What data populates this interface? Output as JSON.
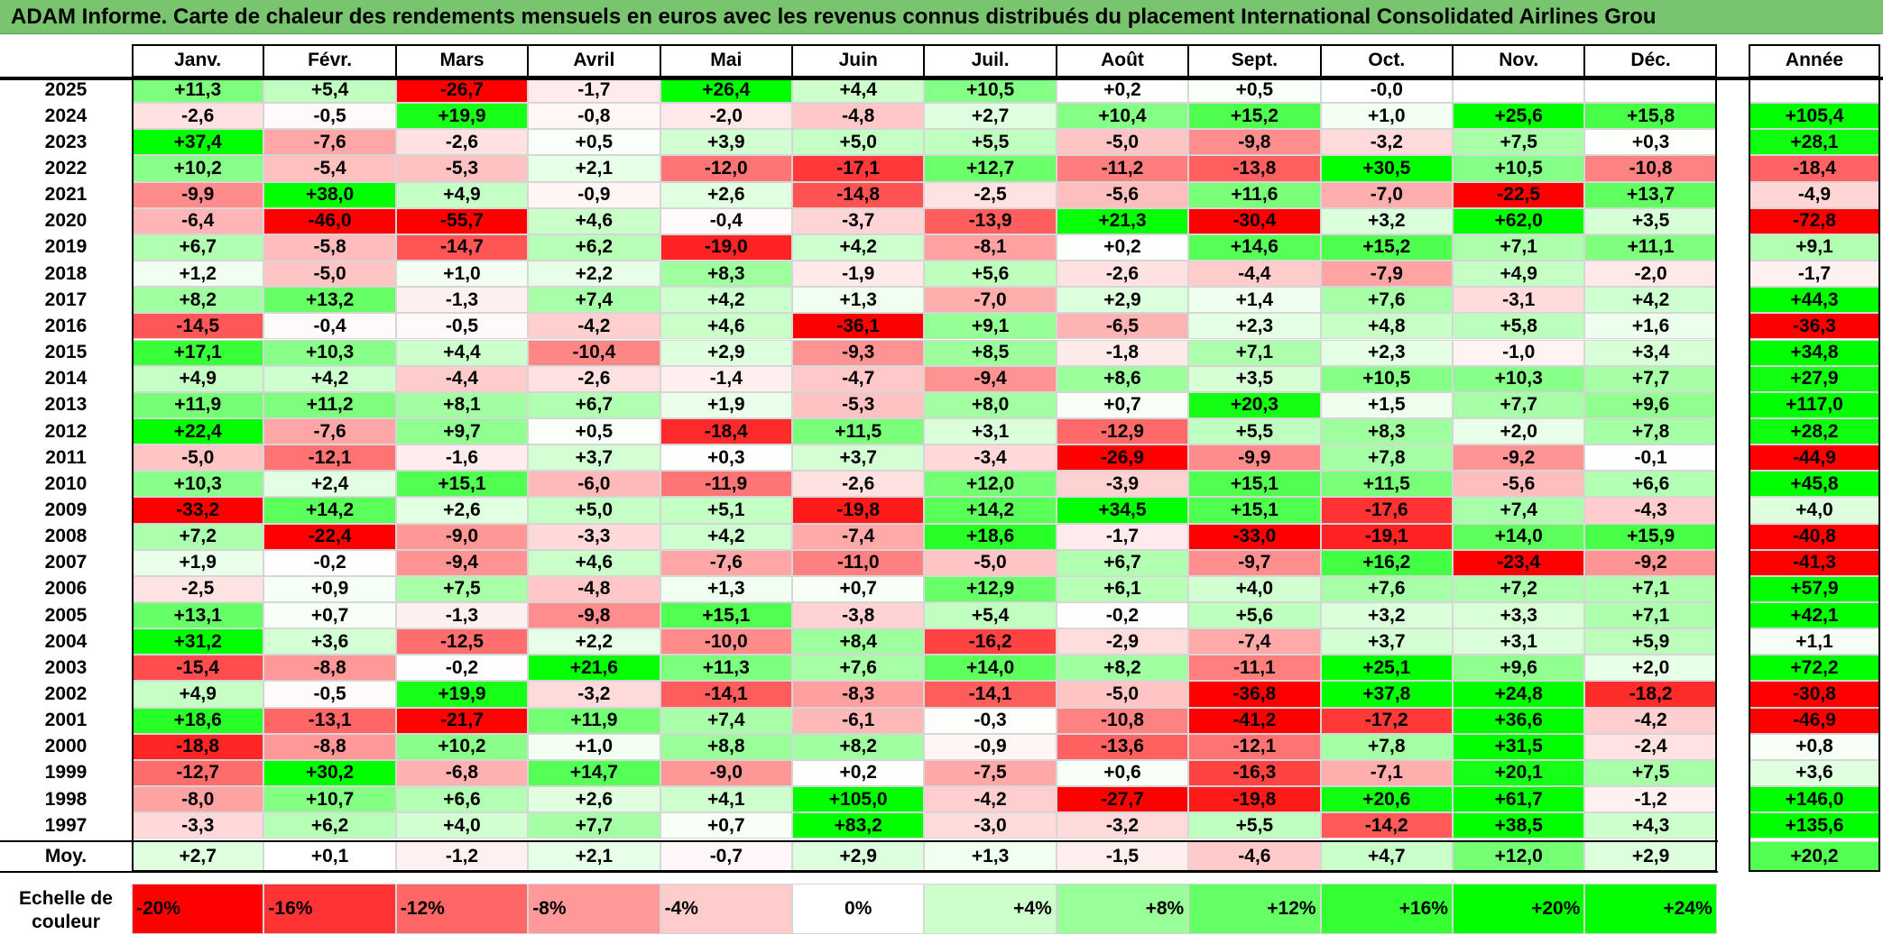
{
  "title": "ADAM Informe. Carte de chaleur des rendements mensuels en euros avec les revenus connus distribués du placement International Consolidated Airlines Grou",
  "chart_data": {
    "type": "heatmap",
    "columns": [
      "Janv.",
      "Févr.",
      "Mars",
      "Avril",
      "Mai",
      "Juin",
      "Juil.",
      "Août",
      "Sept.",
      "Oct.",
      "Nov.",
      "Déc."
    ],
    "year_header": "Année",
    "rows": [
      {
        "year": "2025",
        "months": [
          "+11,3",
          "+5,4",
          "-26,7",
          "-1,7",
          "+26,4",
          "+4,4",
          "+10,5",
          "+0,2",
          "+0,5",
          "-0,0",
          "",
          ""
        ],
        "total": ""
      },
      {
        "year": "2024",
        "months": [
          "-2,6",
          "-0,5",
          "+19,9",
          "-0,8",
          "-2,0",
          "-4,8",
          "+2,7",
          "+10,4",
          "+15,2",
          "+1,0",
          "+25,6",
          "+15,8"
        ],
        "total": "+105,4"
      },
      {
        "year": "2023",
        "months": [
          "+37,4",
          "-7,6",
          "-2,6",
          "+0,5",
          "+3,9",
          "+5,0",
          "+5,5",
          "-5,0",
          "-9,8",
          "-3,2",
          "+7,5",
          "+0,3"
        ],
        "total": "+28,1"
      },
      {
        "year": "2022",
        "months": [
          "+10,2",
          "-5,4",
          "-5,3",
          "+2,1",
          "-12,0",
          "-17,1",
          "+12,7",
          "-11,2",
          "-13,8",
          "+30,5",
          "+10,5",
          "-10,8"
        ],
        "total": "-18,4"
      },
      {
        "year": "2021",
        "months": [
          "-9,9",
          "+38,0",
          "+4,9",
          "-0,9",
          "+2,6",
          "-14,8",
          "-2,5",
          "-5,6",
          "+11,6",
          "-7,0",
          "-22,5",
          "+13,7"
        ],
        "total": "-4,9"
      },
      {
        "year": "2020",
        "months": [
          "-6,4",
          "-46,0",
          "-55,7",
          "+4,6",
          "-0,4",
          "-3,7",
          "-13,9",
          "+21,3",
          "-30,4",
          "+3,2",
          "+62,0",
          "+3,5"
        ],
        "total": "-72,8"
      },
      {
        "year": "2019",
        "months": [
          "+6,7",
          "-5,8",
          "-14,7",
          "+6,2",
          "-19,0",
          "+4,2",
          "-8,1",
          "+0,2",
          "+14,6",
          "+15,2",
          "+7,1",
          "+11,1"
        ],
        "total": "+9,1"
      },
      {
        "year": "2018",
        "months": [
          "+1,2",
          "-5,0",
          "+1,0",
          "+2,2",
          "+8,3",
          "-1,9",
          "+5,6",
          "-2,6",
          "-4,4",
          "-7,9",
          "+4,9",
          "-2,0"
        ],
        "total": "-1,7"
      },
      {
        "year": "2017",
        "months": [
          "+8,2",
          "+13,2",
          "-1,3",
          "+7,4",
          "+4,2",
          "+1,3",
          "-7,0",
          "+2,9",
          "+1,4",
          "+7,6",
          "-3,1",
          "+4,2"
        ],
        "total": "+44,3"
      },
      {
        "year": "2016",
        "months": [
          "-14,5",
          "-0,4",
          "-0,5",
          "-4,2",
          "+4,6",
          "-36,1",
          "+9,1",
          "-6,5",
          "+2,3",
          "+4,8",
          "+5,8",
          "+1,6"
        ],
        "total": "-36,3"
      },
      {
        "year": "2015",
        "months": [
          "+17,1",
          "+10,3",
          "+4,4",
          "-10,4",
          "+2,9",
          "-9,3",
          "+8,5",
          "-1,8",
          "+7,1",
          "+2,3",
          "-1,0",
          "+3,4"
        ],
        "total": "+34,8"
      },
      {
        "year": "2014",
        "months": [
          "+4,9",
          "+4,2",
          "-4,4",
          "-2,6",
          "-1,4",
          "-4,7",
          "-9,4",
          "+8,6",
          "+3,5",
          "+10,5",
          "+10,3",
          "+7,7"
        ],
        "total": "+27,9"
      },
      {
        "year": "2013",
        "months": [
          "+11,9",
          "+11,2",
          "+8,1",
          "+6,7",
          "+1,9",
          "-5,3",
          "+8,0",
          "+0,7",
          "+20,3",
          "+1,5",
          "+7,7",
          "+9,6"
        ],
        "total": "+117,0"
      },
      {
        "year": "2012",
        "months": [
          "+22,4",
          "-7,6",
          "+9,7",
          "+0,5",
          "-18,4",
          "+11,5",
          "+3,1",
          "-12,9",
          "+5,5",
          "+8,3",
          "+2,0",
          "+7,8"
        ],
        "total": "+28,2"
      },
      {
        "year": "2011",
        "months": [
          "-5,0",
          "-12,1",
          "-1,6",
          "+3,7",
          "+0,3",
          "+3,7",
          "-3,4",
          "-26,9",
          "-9,9",
          "+7,8",
          "-9,2",
          "-0,1"
        ],
        "total": "-44,9"
      },
      {
        "year": "2010",
        "months": [
          "+10,3",
          "+2,4",
          "+15,1",
          "-6,0",
          "-11,9",
          "-2,6",
          "+12,0",
          "-3,9",
          "+15,1",
          "+11,5",
          "-5,6",
          "+6,6"
        ],
        "total": "+45,8"
      },
      {
        "year": "2009",
        "months": [
          "-33,2",
          "+14,2",
          "+2,6",
          "+5,0",
          "+5,1",
          "-19,8",
          "+14,2",
          "+34,5",
          "+15,1",
          "-17,6",
          "+7,4",
          "-4,3"
        ],
        "total": "+4,0"
      },
      {
        "year": "2008",
        "months": [
          "+7,2",
          "-22,4",
          "-9,0",
          "-3,3",
          "+4,2",
          "-7,4",
          "+18,6",
          "-1,7",
          "-33,0",
          "-19,1",
          "+14,0",
          "+15,9"
        ],
        "total": "-40,8"
      },
      {
        "year": "2007",
        "months": [
          "+1,9",
          "-0,2",
          "-9,4",
          "+4,6",
          "-7,6",
          "-11,0",
          "-5,0",
          "+6,7",
          "-9,7",
          "+16,2",
          "-23,4",
          "-9,2"
        ],
        "total": "-41,3"
      },
      {
        "year": "2006",
        "months": [
          "-2,5",
          "+0,9",
          "+7,5",
          "-4,8",
          "+1,3",
          "+0,7",
          "+12,9",
          "+6,1",
          "+4,0",
          "+7,6",
          "+7,2",
          "+7,1"
        ],
        "total": "+57,9"
      },
      {
        "year": "2005",
        "months": [
          "+13,1",
          "+0,7",
          "-1,3",
          "-9,8",
          "+15,1",
          "-3,8",
          "+5,4",
          "-0,2",
          "+5,6",
          "+3,2",
          "+3,3",
          "+7,1"
        ],
        "total": "+42,1"
      },
      {
        "year": "2004",
        "months": [
          "+31,2",
          "+3,6",
          "-12,5",
          "+2,2",
          "-10,0",
          "+8,4",
          "-16,2",
          "-2,9",
          "-7,4",
          "+3,7",
          "+3,1",
          "+5,9"
        ],
        "total": "+1,1"
      },
      {
        "year": "2003",
        "months": [
          "-15,4",
          "-8,8",
          "-0,2",
          "+21,6",
          "+11,3",
          "+7,6",
          "+14,0",
          "+8,2",
          "-11,1",
          "+25,1",
          "+9,6",
          "+2,0"
        ],
        "total": "+72,2"
      },
      {
        "year": "2002",
        "months": [
          "+4,9",
          "-0,5",
          "+19,9",
          "-3,2",
          "-14,1",
          "-8,3",
          "-14,1",
          "-5,0",
          "-36,8",
          "+37,8",
          "+24,8",
          "-18,2"
        ],
        "total": "-30,8"
      },
      {
        "year": "2001",
        "months": [
          "+18,6",
          "-13,1",
          "-21,7",
          "+11,9",
          "+7,4",
          "-6,1",
          "-0,3",
          "-10,8",
          "-41,2",
          "-17,2",
          "+36,6",
          "-4,2"
        ],
        "total": "-46,9"
      },
      {
        "year": "2000",
        "months": [
          "-18,8",
          "-8,8",
          "+10,2",
          "+1,0",
          "+8,8",
          "+8,2",
          "-0,9",
          "-13,6",
          "-12,1",
          "+7,8",
          "+31,5",
          "-2,4"
        ],
        "total": "+0,8"
      },
      {
        "year": "1999",
        "months": [
          "-12,7",
          "+30,2",
          "-6,8",
          "+14,7",
          "-9,0",
          "+0,2",
          "-7,5",
          "+0,6",
          "-16,3",
          "-7,1",
          "+20,1",
          "+7,5"
        ],
        "total": "+3,6"
      },
      {
        "year": "1998",
        "months": [
          "-8,0",
          "+10,7",
          "+6,6",
          "+2,6",
          "+4,1",
          "+105,0",
          "-4,2",
          "-27,7",
          "-19,8",
          "+20,6",
          "+61,7",
          "-1,2"
        ],
        "total": "+146,0"
      },
      {
        "year": "1997",
        "months": [
          "-3,3",
          "+6,2",
          "+4,0",
          "+7,7",
          "+0,7",
          "+83,2",
          "-3,0",
          "-3,2",
          "+5,5",
          "-14,2",
          "+38,5",
          "+4,3"
        ],
        "total": "+135,6"
      }
    ],
    "average": {
      "label": "Moy.",
      "months": [
        "+2,7",
        "+0,1",
        "-1,2",
        "+2,1",
        "-0,7",
        "+2,9",
        "+1,3",
        "-1,5",
        "-4,6",
        "+4,7",
        "+12,0",
        "+2,9"
      ],
      "total": "+20,2"
    },
    "color_scale": {
      "label": "Echelle de couleur",
      "stops": [
        "-20%",
        "-16%",
        "-12%",
        "-8%",
        "-4%",
        "0%",
        "+4%",
        "+8%",
        "+12%",
        "+16%",
        "+20%",
        "+24%"
      ],
      "stop_values": [
        -20,
        -16,
        -12,
        -8,
        -4,
        0,
        4,
        8,
        12,
        16,
        20,
        24
      ],
      "negative_color": "#ff0000",
      "neutral_color": "#ffffff",
      "positive_color": "#00ff00"
    }
  }
}
